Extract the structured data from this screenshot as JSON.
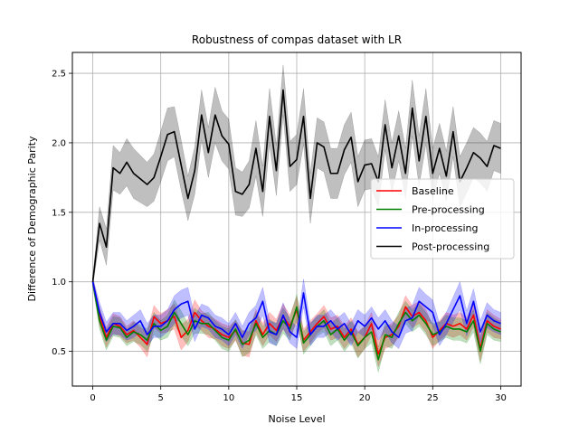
{
  "chart_data": {
    "type": "line",
    "title": "Robustness of compas dataset with LR",
    "xlabel": "Noise Level",
    "ylabel": "Difference of Demographic Parity",
    "xlim": [
      -1.5,
      31.5
    ],
    "ylim": [
      0.25,
      2.65
    ],
    "xticks": [
      0,
      5,
      10,
      15,
      20,
      25,
      30
    ],
    "yticks": [
      0.5,
      1.0,
      1.5,
      2.0,
      2.5
    ],
    "grid": true,
    "legend_position": "center-right",
    "x": [
      0,
      0.5,
      1,
      1.5,
      2,
      2.5,
      3,
      3.5,
      4,
      4.5,
      5,
      5.5,
      6,
      6.5,
      7,
      7.5,
      8,
      8.5,
      9,
      9.5,
      10,
      10.5,
      11,
      11.5,
      12,
      12.5,
      13,
      13.5,
      14,
      14.5,
      15,
      15.5,
      16,
      16.5,
      17,
      17.5,
      18,
      18.5,
      19,
      19.5,
      20,
      20.5,
      21,
      21.5,
      22,
      22.5,
      23,
      23.5,
      24,
      24.5,
      25,
      25.5,
      26,
      26.5,
      27,
      27.5,
      28,
      28.5,
      29,
      29.5,
      30
    ],
    "series": [
      {
        "name": "Baseline",
        "color": "#ff0000",
        "values": [
          1.0,
          0.75,
          0.6,
          0.7,
          0.68,
          0.62,
          0.65,
          0.6,
          0.55,
          0.75,
          0.7,
          0.72,
          0.75,
          0.6,
          0.65,
          0.78,
          0.72,
          0.68,
          0.66,
          0.62,
          0.6,
          0.65,
          0.56,
          0.55,
          0.72,
          0.62,
          0.7,
          0.65,
          0.75,
          0.68,
          0.8,
          0.58,
          0.64,
          0.7,
          0.75,
          0.66,
          0.68,
          0.6,
          0.66,
          0.55,
          0.6,
          0.7,
          0.48,
          0.6,
          0.62,
          0.68,
          0.82,
          0.75,
          0.78,
          0.72,
          0.6,
          0.65,
          0.7,
          0.68,
          0.7,
          0.66,
          0.76,
          0.52,
          0.72,
          0.68,
          0.66
        ],
        "band": [
          0.03,
          0.06,
          0.07,
          0.07,
          0.07,
          0.06,
          0.07,
          0.07,
          0.09,
          0.08,
          0.07,
          0.08,
          0.09,
          0.09,
          0.08,
          0.09,
          0.07,
          0.08,
          0.07,
          0.08,
          0.08,
          0.07,
          0.09,
          0.09,
          0.08,
          0.08,
          0.08,
          0.08,
          0.09,
          0.08,
          0.09,
          0.08,
          0.08,
          0.07,
          0.08,
          0.08,
          0.08,
          0.08,
          0.08,
          0.09,
          0.08,
          0.08,
          0.09,
          0.08,
          0.08,
          0.08,
          0.08,
          0.08,
          0.08,
          0.08,
          0.08,
          0.07,
          0.08,
          0.08,
          0.08,
          0.08,
          0.08,
          0.09,
          0.08,
          0.08,
          0.07
        ]
      },
      {
        "name": "Pre-processing",
        "color": "#008000",
        "values": [
          1.0,
          0.72,
          0.58,
          0.68,
          0.67,
          0.6,
          0.64,
          0.62,
          0.58,
          0.7,
          0.65,
          0.68,
          0.78,
          0.7,
          0.62,
          0.72,
          0.7,
          0.7,
          0.65,
          0.6,
          0.58,
          0.66,
          0.55,
          0.58,
          0.7,
          0.6,
          0.65,
          0.62,
          0.72,
          0.66,
          0.82,
          0.56,
          0.62,
          0.68,
          0.72,
          0.62,
          0.66,
          0.58,
          0.64,
          0.54,
          0.6,
          0.64,
          0.44,
          0.62,
          0.6,
          0.7,
          0.78,
          0.72,
          0.76,
          0.7,
          0.62,
          0.64,
          0.68,
          0.66,
          0.66,
          0.64,
          0.72,
          0.5,
          0.7,
          0.66,
          0.64
        ],
        "band": [
          0.03,
          0.06,
          0.07,
          0.07,
          0.07,
          0.06,
          0.07,
          0.07,
          0.08,
          0.08,
          0.07,
          0.08,
          0.09,
          0.09,
          0.08,
          0.09,
          0.07,
          0.08,
          0.07,
          0.08,
          0.08,
          0.07,
          0.09,
          0.09,
          0.08,
          0.08,
          0.08,
          0.08,
          0.09,
          0.08,
          0.09,
          0.08,
          0.08,
          0.07,
          0.08,
          0.08,
          0.08,
          0.08,
          0.08,
          0.09,
          0.08,
          0.08,
          0.09,
          0.08,
          0.08,
          0.08,
          0.08,
          0.08,
          0.08,
          0.08,
          0.08,
          0.07,
          0.08,
          0.08,
          0.08,
          0.08,
          0.08,
          0.09,
          0.08,
          0.08,
          0.07
        ]
      },
      {
        "name": "In-processing",
        "color": "#0000ff",
        "values": [
          1.0,
          0.78,
          0.64,
          0.7,
          0.7,
          0.65,
          0.68,
          0.72,
          0.62,
          0.68,
          0.68,
          0.72,
          0.8,
          0.84,
          0.86,
          0.66,
          0.76,
          0.74,
          0.68,
          0.66,
          0.62,
          0.7,
          0.6,
          0.7,
          0.74,
          0.86,
          0.64,
          0.62,
          0.76,
          0.64,
          0.6,
          0.92,
          0.62,
          0.68,
          0.68,
          0.72,
          0.66,
          0.7,
          0.62,
          0.72,
          0.68,
          0.74,
          0.66,
          0.72,
          0.64,
          0.6,
          0.72,
          0.74,
          0.86,
          0.82,
          0.78,
          0.62,
          0.7,
          0.8,
          0.9,
          0.7,
          0.86,
          0.64,
          0.76,
          0.72,
          0.7
        ],
        "band": [
          0.03,
          0.07,
          0.07,
          0.08,
          0.08,
          0.07,
          0.08,
          0.08,
          0.08,
          0.08,
          0.08,
          0.08,
          0.1,
          0.1,
          0.1,
          0.09,
          0.08,
          0.08,
          0.08,
          0.08,
          0.08,
          0.08,
          0.08,
          0.08,
          0.09,
          0.1,
          0.08,
          0.08,
          0.09,
          0.08,
          0.08,
          0.1,
          0.08,
          0.08,
          0.08,
          0.08,
          0.08,
          0.08,
          0.08,
          0.08,
          0.08,
          0.08,
          0.08,
          0.08,
          0.08,
          0.08,
          0.09,
          0.09,
          0.1,
          0.09,
          0.09,
          0.08,
          0.08,
          0.09,
          0.1,
          0.09,
          0.09,
          0.08,
          0.09,
          0.08,
          0.08
        ]
      },
      {
        "name": "Post-processing",
        "color": "#000000",
        "values": [
          1.0,
          1.42,
          1.25,
          1.82,
          1.78,
          1.86,
          1.78,
          1.74,
          1.7,
          1.75,
          1.9,
          2.06,
          2.08,
          1.84,
          1.6,
          1.8,
          2.2,
          1.93,
          2.2,
          2.05,
          1.99,
          1.65,
          1.63,
          1.7,
          1.96,
          1.65,
          2.19,
          1.8,
          2.38,
          1.83,
          1.88,
          2.19,
          1.6,
          2.0,
          1.97,
          1.78,
          1.78,
          1.95,
          2.04,
          1.72,
          1.84,
          1.85,
          1.72,
          2.13,
          1.82,
          2.05,
          1.78,
          2.25,
          1.87,
          2.19,
          1.78,
          1.96,
          1.76,
          2.08,
          1.72,
          1.82,
          1.93,
          1.89,
          1.83,
          1.98,
          1.96
        ],
        "band": [
          0.03,
          0.12,
          0.13,
          0.16,
          0.15,
          0.17,
          0.18,
          0.17,
          0.16,
          0.17,
          0.18,
          0.19,
          0.18,
          0.18,
          0.16,
          0.17,
          0.18,
          0.18,
          0.2,
          0.18,
          0.18,
          0.17,
          0.16,
          0.17,
          0.2,
          0.18,
          0.2,
          0.18,
          0.18,
          0.18,
          0.18,
          0.2,
          0.18,
          0.18,
          0.18,
          0.18,
          0.18,
          0.18,
          0.18,
          0.18,
          0.18,
          0.18,
          0.18,
          0.18,
          0.18,
          0.18,
          0.18,
          0.2,
          0.18,
          0.2,
          0.18,
          0.18,
          0.18,
          0.18,
          0.18,
          0.18,
          0.18,
          0.18,
          0.18,
          0.18,
          0.18
        ]
      }
    ]
  }
}
